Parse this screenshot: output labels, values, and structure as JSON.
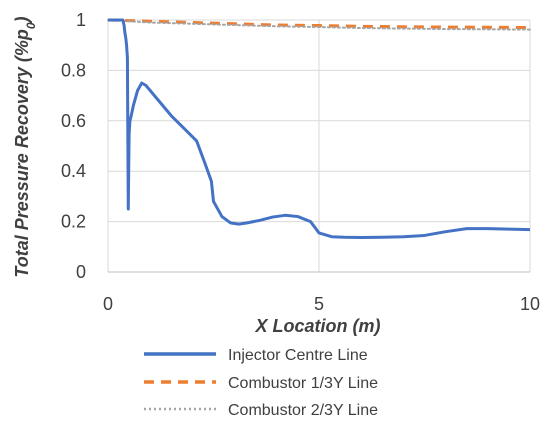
{
  "chart_data": {
    "type": "line",
    "title": "",
    "xlabel": "X Location (m)",
    "ylabel": "Total Pressure Recovery (%p",
    "ylabel_sub": "0",
    "xlim": [
      0,
      10
    ],
    "ylim": [
      0,
      1
    ],
    "x_ticks": [
      "0",
      "5",
      "10"
    ],
    "y_ticks": [
      "0",
      "0.2",
      "0.4",
      "0.6",
      "0.8",
      "1"
    ],
    "x_tick_values": [
      0,
      5,
      10
    ],
    "y_tick_values": [
      0,
      0.2,
      0.4,
      0.6,
      0.8,
      1
    ],
    "grid": true,
    "legend_position": "bottom",
    "series": [
      {
        "name": "Injector Centre Line",
        "color": "#4472C4",
        "dash": "solid",
        "x": [
          0,
          0.35,
          0.38,
          0.4,
          0.42,
          0.44,
          0.46,
          0.48,
          0.5,
          0.52,
          0.55,
          0.6,
          0.7,
          0.8,
          0.9,
          1.0,
          1.2,
          1.5,
          1.8,
          2.1,
          2.3,
          2.45,
          2.5,
          2.7,
          2.9,
          3.1,
          3.3,
          3.6,
          3.9,
          4.2,
          4.5,
          4.8,
          5.0,
          5.3,
          5.6,
          6.0,
          6.5,
          7.0,
          7.5,
          8.0,
          8.5,
          9.0,
          9.5,
          10.0
        ],
        "y": [
          1.0,
          1.0,
          0.98,
          0.95,
          0.93,
          0.9,
          0.85,
          0.25,
          0.55,
          0.6,
          0.62,
          0.66,
          0.72,
          0.75,
          0.74,
          0.72,
          0.68,
          0.62,
          0.57,
          0.52,
          0.43,
          0.36,
          0.28,
          0.22,
          0.195,
          0.19,
          0.195,
          0.205,
          0.218,
          0.225,
          0.22,
          0.2,
          0.155,
          0.14,
          0.138,
          0.137,
          0.138,
          0.14,
          0.145,
          0.16,
          0.172,
          0.172,
          0.17,
          0.168
        ]
      },
      {
        "name": "Combustor 1/3Y Line",
        "color": "#ED7D31",
        "dash": "dashed",
        "x": [
          0,
          1,
          2,
          3,
          4,
          5,
          6,
          7,
          8,
          9,
          10
        ],
        "y": [
          1.0,
          0.995,
          0.99,
          0.985,
          0.98,
          0.978,
          0.975,
          0.973,
          0.972,
          0.971,
          0.97
        ]
      },
      {
        "name": "Combustor 2/3Y Line",
        "color": "#A5A5A5",
        "dash": "dotted",
        "x": [
          0,
          1,
          2,
          3,
          4,
          5,
          6,
          7,
          8,
          9,
          10
        ],
        "y": [
          1.0,
          0.99,
          0.985,
          0.98,
          0.975,
          0.972,
          0.968,
          0.966,
          0.964,
          0.963,
          0.962
        ]
      }
    ]
  }
}
